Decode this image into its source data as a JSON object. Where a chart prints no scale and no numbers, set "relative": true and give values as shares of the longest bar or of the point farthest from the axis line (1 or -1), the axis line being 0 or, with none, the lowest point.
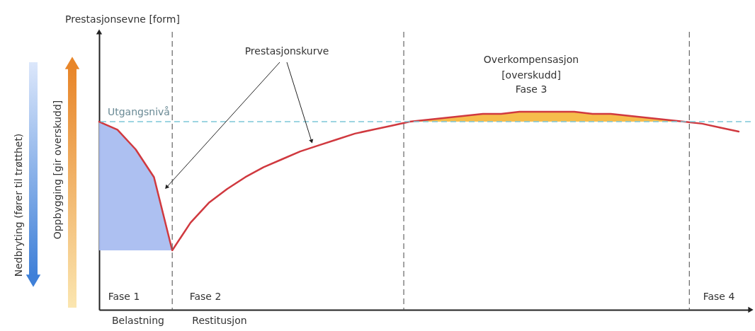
{
  "chart_data": {
    "type": "line",
    "relative": true,
    "categories": [
      null,
      null,
      null,
      null,
      null,
      null,
      null,
      null,
      null,
      null,
      null,
      null,
      null,
      null,
      null,
      null,
      null,
      null,
      null,
      null,
      null,
      null,
      null,
      null,
      null,
      null,
      null,
      null,
      null,
      null,
      null,
      null,
      null,
      null,
      null,
      null
    ],
    "line_style": "solid",
    "series": [
      {
        "type": "area",
        "color": "#a9bdf0",
        "values": [
          0.95,
          0.91,
          0.81,
          0.67,
          0.3,
          null,
          null,
          null,
          null,
          null,
          null,
          null,
          null,
          null,
          null,
          null,
          null,
          null,
          null,
          null,
          null,
          null,
          null,
          null,
          null,
          null,
          null,
          null,
          null,
          null,
          null,
          null,
          null,
          null,
          null,
          null
        ]
      },
      {
        "type": "area",
        "color": "#f5b942",
        "values": [
          null,
          null,
          null,
          null,
          null,
          null,
          null,
          null,
          null,
          null,
          null,
          null,
          null,
          null,
          null,
          null,
          null,
          0.95,
          0.96,
          0.97,
          0.98,
          0.99,
          0.99,
          1.0,
          1.0,
          1.0,
          1.0,
          0.99,
          0.99,
          0.98,
          0.97,
          0.96,
          0.95,
          null,
          null,
          null
        ]
      },
      {
        "color": "#d0393f",
        "values": [
          0.95,
          0.91,
          0.81,
          0.67,
          0.3,
          0.44,
          0.54,
          0.61,
          0.67,
          0.72,
          0.76,
          0.8,
          0.83,
          0.86,
          0.89,
          0.91,
          0.93,
          0.95,
          0.96,
          0.97,
          0.98,
          0.99,
          0.99,
          1.0,
          1.0,
          1.0,
          1.0,
          0.99,
          0.99,
          0.98,
          0.97,
          0.96,
          0.95,
          0.94,
          0.92,
          0.9
        ]
      }
    ],
    "ref_lines": [
      {
        "axis": "y",
        "value": 0.95,
        "label": "Utgangsnivå",
        "color": "#7ec8d8",
        "line_style": "dashed"
      }
    ],
    "annotations": [
      "Prestasjonskurve",
      "Overkompensasjon\n[overskudd]",
      "Fase 3",
      "Fase 1",
      "Fase 2",
      "Fase 4",
      "Belastning",
      "Restitusjon",
      "Nedbryting (fører til trøtthet)",
      "Oppbygging [gir overskudd]",
      "Prestasjonsevne [form]"
    ]
  }
}
